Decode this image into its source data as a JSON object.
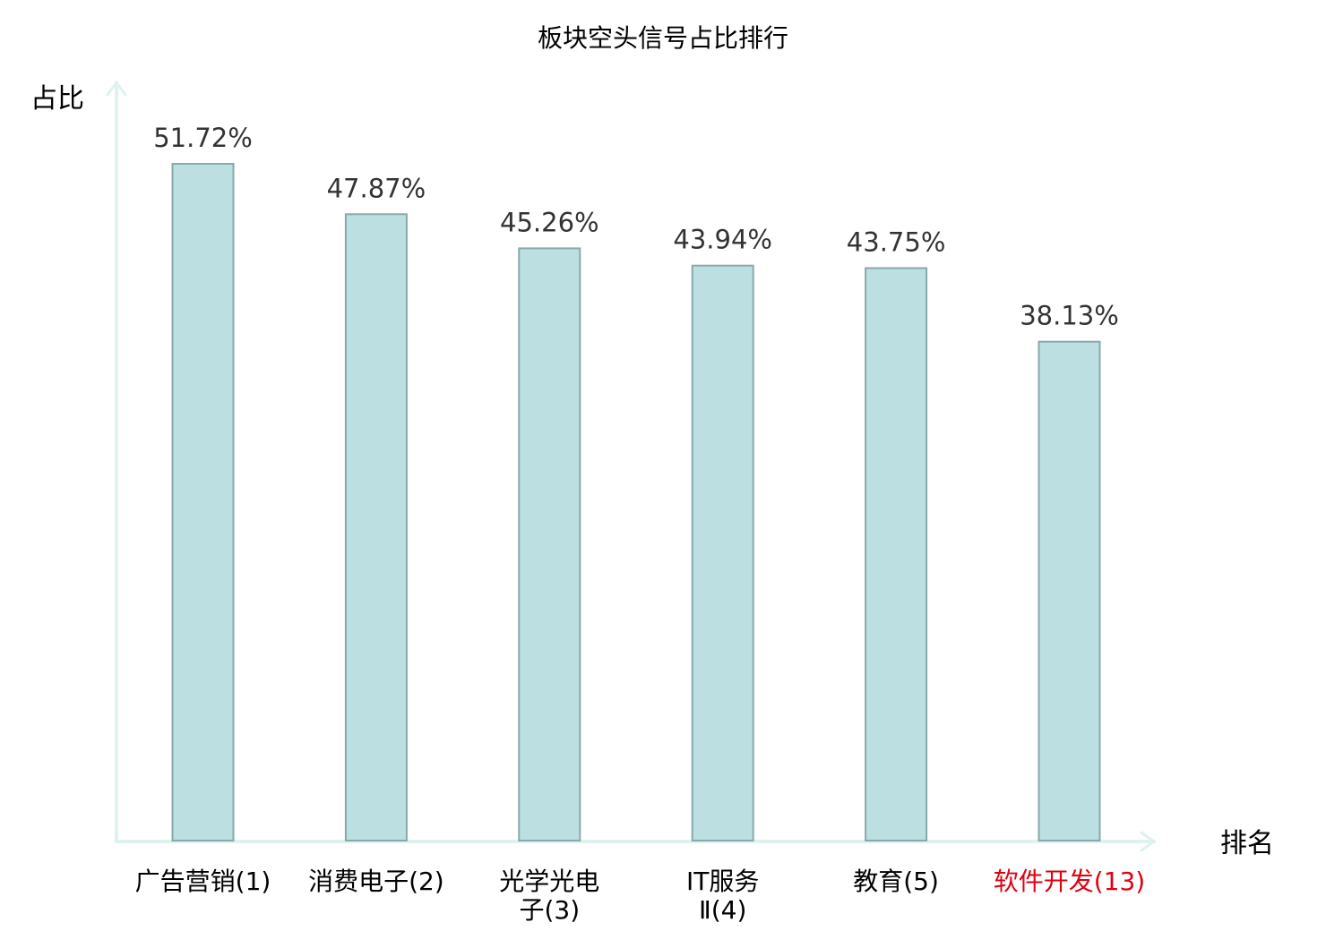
{
  "chart_data": {
    "type": "bar",
    "title": "板块空头信号占比排行",
    "ylabel": "占比",
    "xlabel": "排名",
    "ylim": [
      0,
      60
    ],
    "grid": false,
    "categories": [
      [
        "广告营销(1)"
      ],
      [
        "消费电子(2)"
      ],
      [
        "光学光电",
        "子(3)"
      ],
      [
        "IT服务",
        "Ⅱ(4)"
      ],
      [
        "教育(5)"
      ],
      [
        "软件开发(13)"
      ]
    ],
    "values": [
      51.72,
      47.87,
      45.26,
      43.94,
      43.75,
      38.13
    ],
    "value_labels": [
      "51.72%",
      "47.87%",
      "45.26%",
      "43.94%",
      "43.75%",
      "38.13%"
    ],
    "highlight_index": 5,
    "colors": {
      "bar_fill": "#bce0e2",
      "bar_stroke": "#8aa8aa",
      "axis": "#dff2ef",
      "highlight": "#e0000f",
      "value_text": "#333333"
    }
  }
}
